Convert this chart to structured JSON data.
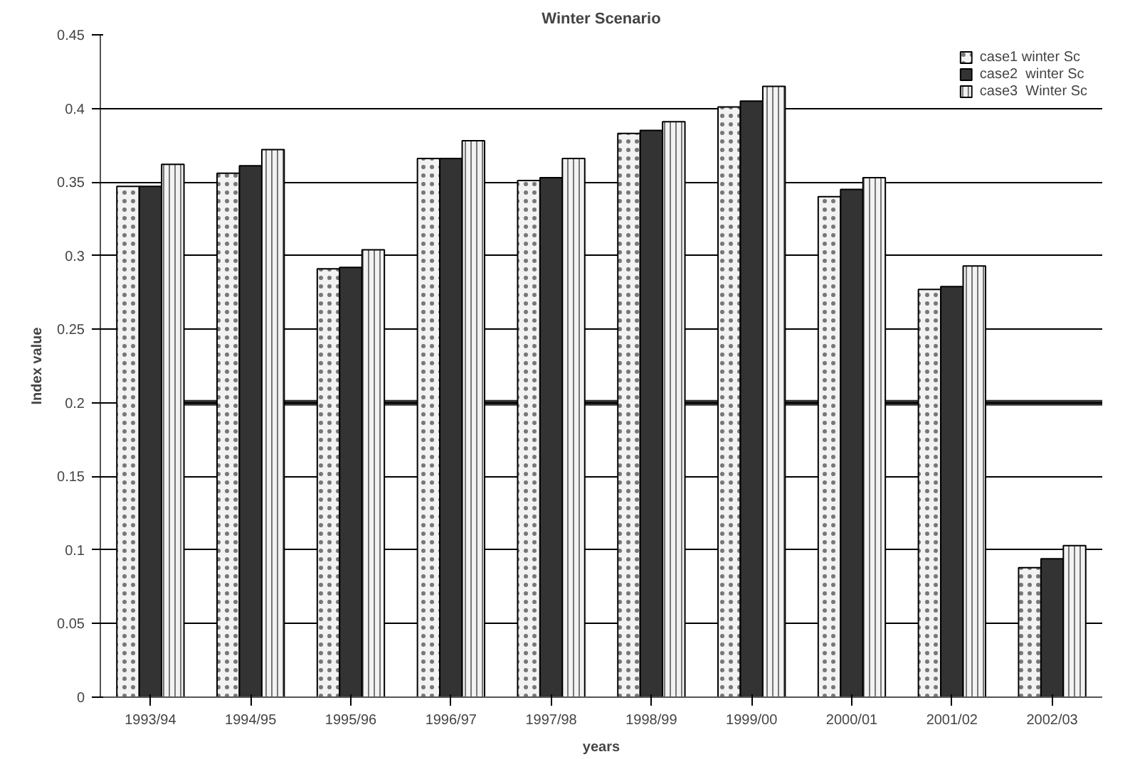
{
  "chart_data": {
    "type": "bar",
    "title": "Winter Scenario",
    "xlabel": "years",
    "ylabel": "Index value",
    "categories": [
      "1993/94",
      "1994/95",
      "1995/96",
      "1996/97",
      "1997/98",
      "1998/99",
      "1999/00",
      "2000/01",
      "2001/02",
      "2002/03"
    ],
    "series": [
      {
        "name": "case1 winter Sc",
        "color": "#f2f2f2",
        "values": [
          0.347,
          0.356,
          0.291,
          0.366,
          0.351,
          0.383,
          0.401,
          0.34,
          0.277,
          0.088
        ]
      },
      {
        "name": "case2  winter Sc",
        "color": "#333333",
        "values": [
          0.347,
          0.361,
          0.292,
          0.366,
          0.353,
          0.385,
          0.405,
          0.345,
          0.279,
          0.094
        ]
      },
      {
        "name": "case3  Winter Sc",
        "color": "#f2f2f2",
        "values": [
          0.362,
          0.372,
          0.304,
          0.378,
          0.366,
          0.391,
          0.415,
          0.353,
          0.293,
          0.103
        ]
      }
    ],
    "ylim": [
      0,
      0.45
    ],
    "yticks": [
      0,
      0.05,
      0.1,
      0.15,
      0.2,
      0.25,
      0.3,
      0.35,
      0.4,
      0.45
    ],
    "ref_lines": [
      {
        "axis": "y",
        "value": 0.2,
        "color": "#333333"
      }
    ],
    "grid": "y",
    "legend": "top right"
  }
}
